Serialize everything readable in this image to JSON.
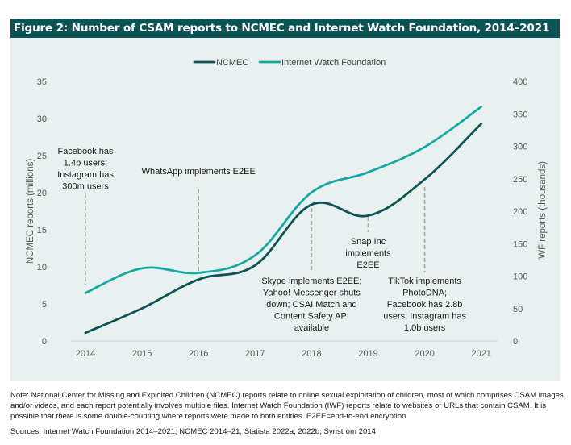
{
  "figure": {
    "title": "Figure 2: Number of CSAM reports to NCMEC and Internet Watch Foundation, 2014–2021",
    "note": "Note: National Center for Missing and Exploited Children (NCMEC) reports relate to online sexual exploitation of children, most of which comprises CSAM images and/or videos, and each report potentially involves multiple files. Internet Watch Foundation (IWF) reports relate to websites or URLs that contain CSAM. It is possible that there is some double-counting where reports were made to both entities. E2EE=end-to-end encryption",
    "sources": "Sources: Internet Watch Foundation 2014–2021; NCMEC 2014–21; Statista 2022a, 2022b; Synstrom 2014"
  },
  "colors": {
    "header_bg": "#0b5354",
    "panel_bg": "#e8f0f0",
    "ncmec": "#0b5354",
    "iwf": "#16a9a3",
    "annotation_line": "#a6a6a6",
    "axis_line": "#d0d0d0"
  },
  "chart_data": {
    "type": "line",
    "title": "Number of CSAM reports to NCMEC and Internet Watch Foundation, 2014–2021",
    "x": [
      "2014",
      "2015",
      "2016",
      "2017",
      "2018",
      "2019",
      "2020",
      "2021"
    ],
    "series": [
      {
        "name": "NCMEC",
        "axis": "left",
        "values": [
          1.1,
          4.4,
          8.3,
          10.2,
          18.4,
          16.9,
          21.8,
          29.3
        ]
      },
      {
        "name": "Internet Watch Foundation",
        "axis": "right",
        "values": [
          74,
          112,
          105,
          132,
          229,
          260,
          299,
          361
        ]
      }
    ],
    "ylabel": "NCMEC reports (millions)",
    "ylim": [
      0,
      35
    ],
    "yticks": [
      "0",
      "5",
      "10",
      "15",
      "20",
      "25",
      "30",
      "35"
    ],
    "y2label": "IWF reports (thousands)",
    "y2lim": [
      0,
      400
    ],
    "y2ticks": [
      "0",
      "50",
      "100",
      "150",
      "200",
      "250",
      "300",
      "350",
      "400"
    ],
    "xlabel": "",
    "grid": false,
    "legend": "top-center",
    "annotations": [
      {
        "x": "2014",
        "position": "above",
        "lines": [
          "Facebook has",
          "1.4b users;",
          "Instagram has",
          "300m users"
        ]
      },
      {
        "x": "2016",
        "position": "above",
        "lines": [
          "WhatsApp implements E2EE"
        ]
      },
      {
        "x": "2018",
        "position": "below",
        "lines": [
          "Skype implements E2EE;",
          "Yahoo! Messenger shuts",
          "down; CSAI Match and",
          "Content Safety API",
          "available"
        ]
      },
      {
        "x": "2019",
        "position": "below",
        "lines": [
          "Snap Inc",
          "implements",
          "E2EE"
        ]
      },
      {
        "x": "2020",
        "position": "below",
        "lines": [
          "TikTok implements",
          "PhotoDNA;",
          "Facebook has 2.8b",
          "users; Instagram has",
          "1.0b users"
        ]
      }
    ]
  }
}
